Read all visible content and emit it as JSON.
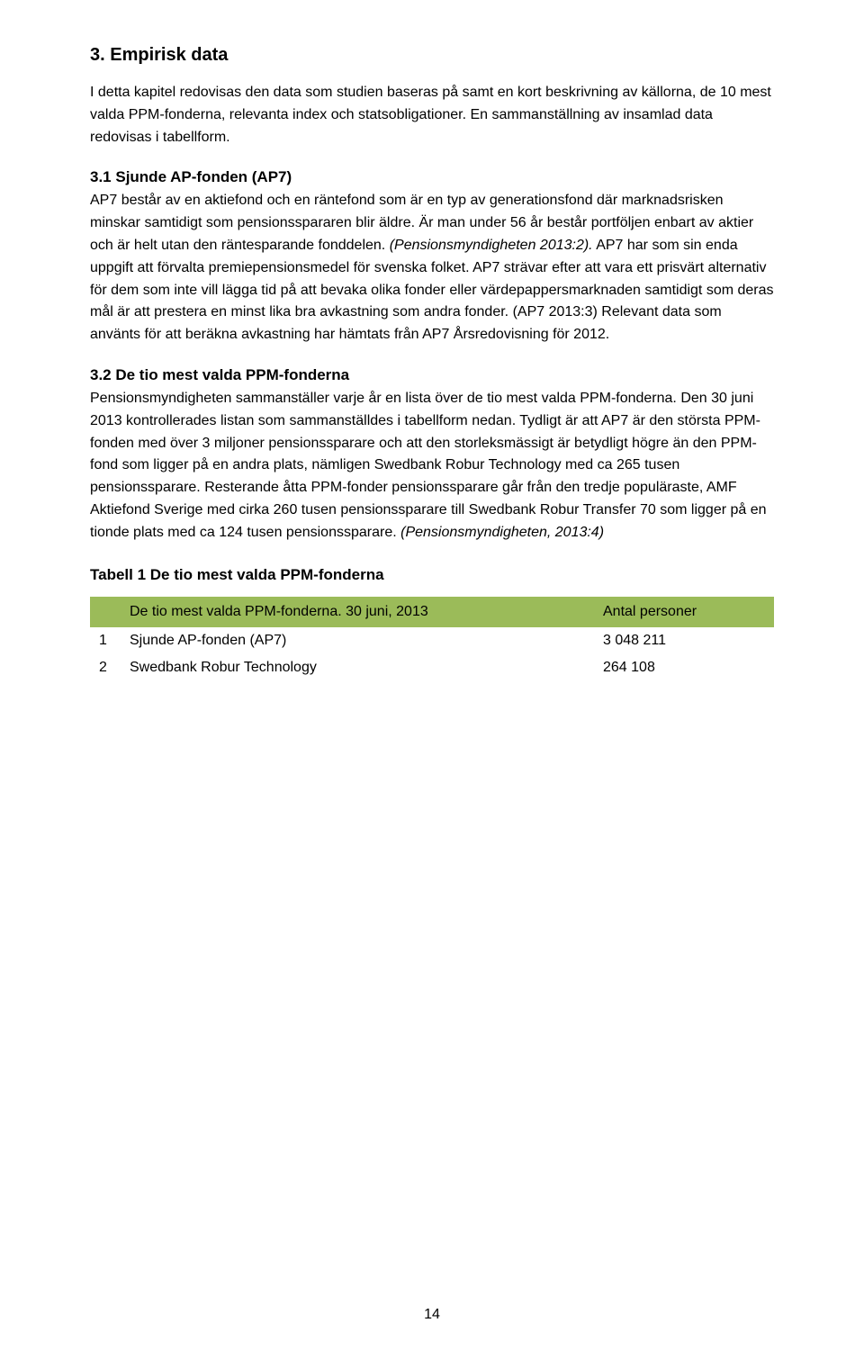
{
  "section": {
    "title": "3. Empirisk data",
    "intro": "I detta kapitel redovisas den data som studien baseras på samt en kort beskrivning av källorna, de 10 mest valda PPM-fonderna, relevanta index och statsobligationer. En sammanställning av insamlad data redovisas i tabellform."
  },
  "sub1": {
    "title": "3.1 Sjunde AP-fonden (AP7)",
    "body_a": "AP7 består av en aktiefond och en räntefond som är en typ av generationsfond där marknadsrisken minskar samtidigt som pensionsspararen blir äldre. Är man under 56 år består portföljen enbart av aktier och är helt utan den räntesparande fonddelen. ",
    "body_a_italic": "(Pensionsmyndigheten 2013:2).",
    "body_b": " AP7 har som sin enda uppgift att förvalta premiepensionsmedel för svenska folket. AP7 strävar efter att vara ett prisvärt alternativ för dem som inte vill lägga tid på att bevaka olika fonder eller värdepappersmarknaden samtidigt som deras mål är att prestera en minst lika bra avkastning som andra fonder. (AP7 2013:3) Relevant data som använts för att beräkna avkastning har hämtats från AP7 Årsredovisning för 2012."
  },
  "sub2": {
    "title": "3.2 De tio mest valda PPM-fonderna",
    "body_a": "Pensionsmyndigheten sammanställer varje år en lista över de tio mest valda PPM-fonderna. Den 30 juni 2013 kontrollerades listan som sammanställdes i tabellform nedan. Tydligt är att AP7 är den största PPM-fonden med över 3 miljoner pensionssparare och att den storleksmässigt är betydligt högre än den PPM-fond som ligger på en andra plats, nämligen Swedbank Robur Technology med ca 265 tusen pensionssparare. Resterande åtta PPM-fonder pensionssparare går från den tredje populäraste, AMF Aktiefond Sverige med cirka 260 tusen pensionssparare till Swedbank Robur Transfer 70 som ligger på en tionde plats med ca 124 tusen pensionssparare. ",
    "body_a_italic": "(Pensionsmyndigheten, 2013:4)"
  },
  "table": {
    "title": "Tabell 1 De tio mest valda PPM-fonderna",
    "header_bg": "#9bbb59",
    "row_bg": "#ffffff",
    "header_left": "De tio mest valda PPM-fonderna. 30 juni, 2013",
    "header_right": "Antal personer",
    "rows": [
      {
        "idx": "1",
        "name": "Sjunde AP-fonden (AP7)",
        "value": "3 048 211"
      },
      {
        "idx": "2",
        "name": "Swedbank Robur Technology",
        "value": "264 108"
      }
    ]
  },
  "page_number": "14"
}
